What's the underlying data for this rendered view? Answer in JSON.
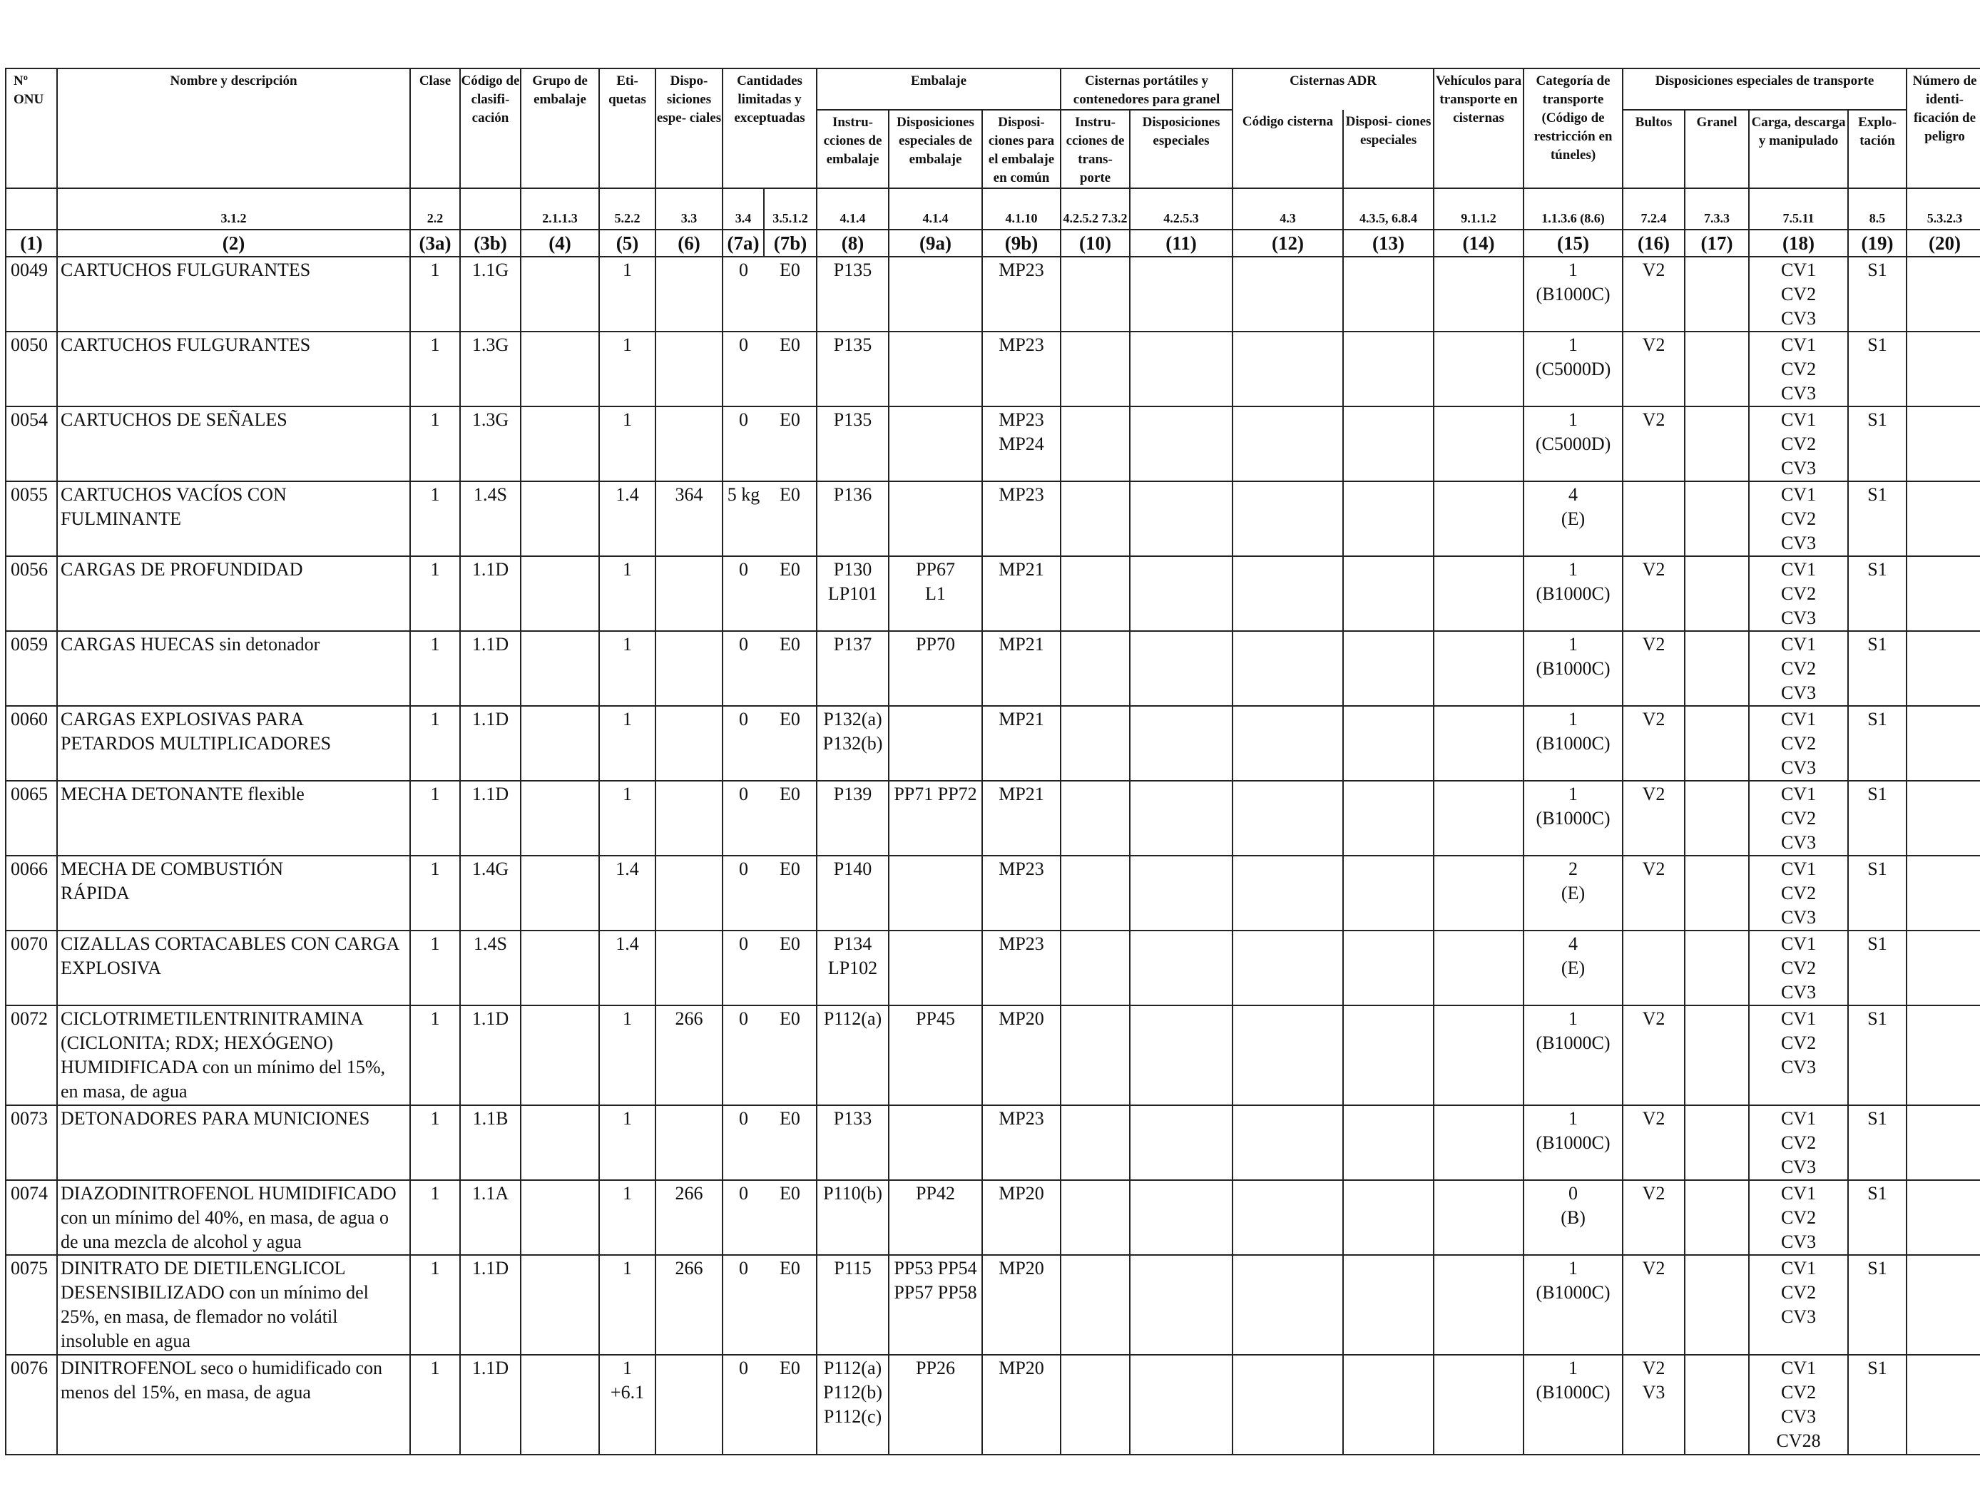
{
  "header": {
    "un_number": "Nº ONU",
    "name": "Nombre y descripción",
    "class": "Clase",
    "classification_code": "Código de clasifi- cación",
    "packing_group": "Grupo de embalaje",
    "labels": "Eti- quetas",
    "special_provisions": "Dispo- siciones espe- ciales",
    "limited_quantities": "Cantidades limitadas y exceptuadas",
    "packaging": "Embalaje",
    "packing_instructions": "Instru- cciones de embalaje",
    "special_packing_provisions": "Disposiciones especiales de embalaje",
    "mixed_packing": "Disposi- ciones para el embalaje en común",
    "portable_tanks": "Cisternas portátiles y contenedores para granel",
    "pt_instructions": "Instru- cciones de trans- porte",
    "pt_special": "Disposiciones especiales",
    "adr_tanks": "Cisternas ADR",
    "tank_code": "Código cisterna",
    "tank_special": "Disposi- ciones especiales",
    "vehicle": "Vehículos para transporte en cisternas",
    "transport_category": "Categoría de transporte (Código de restricción en túneles)",
    "special_transport": "Disposiciones especiales de transporte",
    "packages": "Bultos",
    "bulk": "Granel",
    "loading": "Carga, descarga y manipulado",
    "operation": "Explo- tación",
    "hazard_id": "Número de identi- ficación de peligro"
  },
  "refs": {
    "name": "3.1.2",
    "class": "2.2",
    "pg": "2.1.1.3",
    "labels": "5.2.2",
    "sp": "3.3",
    "lq": "3.4",
    "eq": "3.5.1.2",
    "pi": "4.1.4",
    "spp": "4.1.4",
    "mp": "4.1.10",
    "pt": "4.2.5.2 7.3.2",
    "pts": "4.2.5.3",
    "tc": "4.3",
    "ts": "4.3.5, 6.8.4",
    "veh": "9.1.1.2",
    "cat": "1.1.3.6 (8.6)",
    "pkg": "7.2.4",
    "bulk": "7.3.3",
    "load": "7.5.11",
    "op": "8.5",
    "hid": "5.3.2.3"
  },
  "col_numbers": [
    "(1)",
    "(2)",
    "(3a)",
    "(3b)",
    "(4)",
    "(5)",
    "(6)",
    "(7a)",
    "(7b)",
    "(8)",
    "(9a)",
    "(9b)",
    "(10)",
    "(11)",
    "(12)",
    "(13)",
    "(14)",
    "(15)",
    "(16)",
    "(17)",
    "(18)",
    "(19)",
    "(20)"
  ],
  "rows": [
    {
      "un": "0049",
      "name": "CARTUCHOS FULGURANTES",
      "class": "1",
      "code": "1.1G",
      "pg": "",
      "labels": "1",
      "sp": "",
      "lq": "0",
      "eq": "E0",
      "pi": "P135",
      "spp": "",
      "mp": "MP23",
      "pt": "",
      "pts": "",
      "tc": "",
      "ts": "",
      "veh": "",
      "cat": "1 (B1000C)",
      "pkg": "V2",
      "bulk": "",
      "load": "CV1 CV2 CV3",
      "op": "S1",
      "hid": ""
    },
    {
      "un": "0050",
      "name": "CARTUCHOS FULGURANTES",
      "class": "1",
      "code": "1.3G",
      "pg": "",
      "labels": "1",
      "sp": "",
      "lq": "0",
      "eq": "E0",
      "pi": "P135",
      "spp": "",
      "mp": "MP23",
      "pt": "",
      "pts": "",
      "tc": "",
      "ts": "",
      "veh": "",
      "cat": "1 (C5000D)",
      "pkg": "V2",
      "bulk": "",
      "load": "CV1 CV2 CV3",
      "op": "S1",
      "hid": ""
    },
    {
      "un": "0054",
      "name": "CARTUCHOS DE SEÑALES",
      "class": "1",
      "code": "1.3G",
      "pg": "",
      "labels": "1",
      "sp": "",
      "lq": "0",
      "eq": "E0",
      "pi": "P135",
      "spp": "",
      "mp": "MP23 MP24",
      "pt": "",
      "pts": "",
      "tc": "",
      "ts": "",
      "veh": "",
      "cat": "1 (C5000D)",
      "pkg": "V2",
      "bulk": "",
      "load": "CV1 CV2 CV3",
      "op": "S1",
      "hid": ""
    },
    {
      "un": "0055",
      "name": "CARTUCHOS VACÍOS CON FULMINANTE",
      "class": "1",
      "code": "1.4S",
      "pg": "",
      "labels": "1.4",
      "sp": "364",
      "lq": "5 kg",
      "eq": "E0",
      "pi": "P136",
      "spp": "",
      "mp": "MP23",
      "pt": "",
      "pts": "",
      "tc": "",
      "ts": "",
      "veh": "",
      "cat": "4 (E)",
      "pkg": "",
      "bulk": "",
      "load": "CV1 CV2 CV3",
      "op": "S1",
      "hid": ""
    },
    {
      "un": "0056",
      "name": "CARGAS DE PROFUNDIDAD",
      "class": "1",
      "code": "1.1D",
      "pg": "",
      "labels": "1",
      "sp": "",
      "lq": "0",
      "eq": "E0",
      "pi": "P130 LP101",
      "spp": "PP67 L1",
      "mp": "MP21",
      "pt": "",
      "pts": "",
      "tc": "",
      "ts": "",
      "veh": "",
      "cat": "1 (B1000C)",
      "pkg": "V2",
      "bulk": "",
      "load": "CV1 CV2 CV3",
      "op": "S1",
      "hid": ""
    },
    {
      "un": "0059",
      "name": "CARGAS HUECAS sin detonador",
      "class": "1",
      "code": "1.1D",
      "pg": "",
      "labels": "1",
      "sp": "",
      "lq": "0",
      "eq": "E0",
      "pi": "P137",
      "spp": "PP70",
      "mp": "MP21",
      "pt": "",
      "pts": "",
      "tc": "",
      "ts": "",
      "veh": "",
      "cat": "1 (B1000C)",
      "pkg": "V2",
      "bulk": "",
      "load": "CV1 CV2 CV3",
      "op": "S1",
      "hid": ""
    },
    {
      "un": "0060",
      "name": "CARGAS EXPLOSIVAS PARA PETARDOS MULTIPLICADORES",
      "class": "1",
      "code": "1.1D",
      "pg": "",
      "labels": "1",
      "sp": "",
      "lq": "0",
      "eq": "E0",
      "pi": "P132(a) P132(b)",
      "spp": "",
      "mp": "MP21",
      "pt": "",
      "pts": "",
      "tc": "",
      "ts": "",
      "veh": "",
      "cat": "1 (B1000C)",
      "pkg": "V2",
      "bulk": "",
      "load": "CV1 CV2 CV3",
      "op": "S1",
      "hid": ""
    },
    {
      "un": "0065",
      "name": "MECHA DETONANTE flexible",
      "class": "1",
      "code": "1.1D",
      "pg": "",
      "labels": "1",
      "sp": "",
      "lq": "0",
      "eq": "E0",
      "pi": "P139",
      "spp": "PP71 PP72",
      "mp": "MP21",
      "pt": "",
      "pts": "",
      "tc": "",
      "ts": "",
      "veh": "",
      "cat": "1 (B1000C)",
      "pkg": "V2",
      "bulk": "",
      "load": "CV1 CV2 CV3",
      "op": "S1",
      "hid": ""
    },
    {
      "un": "0066",
      "name": "MECHA DE COMBUSTIÓN RÁPIDA",
      "class": "1",
      "code": "1.4G",
      "pg": "",
      "labels": "1.4",
      "sp": "",
      "lq": "0",
      "eq": "E0",
      "pi": "P140",
      "spp": "",
      "mp": "MP23",
      "pt": "",
      "pts": "",
      "tc": "",
      "ts": "",
      "veh": "",
      "cat": "2 (E)",
      "pkg": "V2",
      "bulk": "",
      "load": "CV1 CV2 CV3",
      "op": "S1",
      "hid": ""
    },
    {
      "un": "0070",
      "name": "CIZALLAS CORTACABLES CON CARGA EXPLOSIVA",
      "class": "1",
      "code": "1.4S",
      "pg": "",
      "labels": "1.4",
      "sp": "",
      "lq": "0",
      "eq": "E0",
      "pi": "P134 LP102",
      "spp": "",
      "mp": "MP23",
      "pt": "",
      "pts": "",
      "tc": "",
      "ts": "",
      "veh": "",
      "cat": "4 (E)",
      "pkg": "",
      "bulk": "",
      "load": "CV1 CV2 CV3",
      "op": "S1",
      "hid": ""
    },
    {
      "un": "0072",
      "name": "CICLOTRIMETILENTRINITRAMINA (CICLONITA; RDX; HEXÓGENO) HUMIDIFICADA con un mínimo del 15%, en masa, de agua",
      "class": "1",
      "code": "1.1D",
      "pg": "",
      "labels": "1",
      "sp": "266",
      "lq": "0",
      "eq": "E0",
      "pi": "P112(a)",
      "spp": "PP45",
      "mp": "MP20",
      "pt": "",
      "pts": "",
      "tc": "",
      "ts": "",
      "veh": "",
      "cat": "1 (B1000C)",
      "pkg": "V2",
      "bulk": "",
      "load": "CV1 CV2 CV3",
      "op": "S1",
      "hid": ""
    },
    {
      "un": "0073",
      "name": "DETONADORES PARA MUNICIONES",
      "class": "1",
      "code": "1.1B",
      "pg": "",
      "labels": "1",
      "sp": "",
      "lq": "0",
      "eq": "E0",
      "pi": "P133",
      "spp": "",
      "mp": "MP23",
      "pt": "",
      "pts": "",
      "tc": "",
      "ts": "",
      "veh": "",
      "cat": "1 (B1000C)",
      "pkg": "V2",
      "bulk": "",
      "load": "CV1 CV2 CV3",
      "op": "S1",
      "hid": ""
    },
    {
      "un": "0074",
      "name": "DIAZODINITROFENOL HUMIDIFICADO con un mínimo del 40%, en masa, de agua o de una mezcla de alcohol y agua",
      "class": "1",
      "code": "1.1A",
      "pg": "",
      "labels": "1",
      "sp": "266",
      "lq": "0",
      "eq": "E0",
      "pi": "P110(b)",
      "spp": "PP42",
      "mp": "MP20",
      "pt": "",
      "pts": "",
      "tc": "",
      "ts": "",
      "veh": "",
      "cat": "0 (B)",
      "pkg": "V2",
      "bulk": "",
      "load": "CV1 CV2 CV3",
      "op": "S1",
      "hid": ""
    },
    {
      "un": "0075",
      "name": "DINITRATO DE DIETILENGLICOL DESENSIBILIZADO con un mínimo del 25%, en masa, de flemador no volátil insoluble en agua",
      "class": "1",
      "code": "1.1D",
      "pg": "",
      "labels": "1",
      "sp": "266",
      "lq": "0",
      "eq": "E0",
      "pi": "P115",
      "spp": "PP53 PP54 PP57 PP58",
      "mp": "MP20",
      "pt": "",
      "pts": "",
      "tc": "",
      "ts": "",
      "veh": "",
      "cat": "1 (B1000C)",
      "pkg": "V2",
      "bulk": "",
      "load": "CV1 CV2 CV3",
      "op": "S1",
      "hid": ""
    },
    {
      "un": "0076",
      "name": "DINITROFENOL seco o humidificado con menos del 15%, en masa, de agua",
      "class": "1",
      "code": "1.1D",
      "pg": "",
      "labels": "1 +6.1",
      "sp": "",
      "lq": "0",
      "eq": "E0",
      "pi": "P112(a) P112(b) P112(c)",
      "spp": "PP26",
      "mp": "MP20",
      "pt": "",
      "pts": "",
      "tc": "",
      "ts": "",
      "veh": "",
      "cat": "1 (B1000C)",
      "pkg": "V2 V3",
      "bulk": "",
      "load": "CV1 CV2 CV3 CV28",
      "op": "S1",
      "hid": ""
    }
  ],
  "row_lines": {
    "0049": {
      "cat": [
        "1",
        "(B1000C)"
      ],
      "load": [
        "CV1",
        "CV2",
        "CV3"
      ]
    },
    "0050": {
      "cat": [
        "1",
        "(C5000D)"
      ],
      "load": [
        "CV1",
        "CV2",
        "CV3"
      ]
    },
    "0054": {
      "cat": [
        "1",
        "(C5000D)"
      ],
      "load": [
        "CV1",
        "CV2",
        "CV3"
      ],
      "mp": [
        "MP23",
        "MP24"
      ]
    },
    "0055": {
      "cat": [
        "4",
        "(E)"
      ],
      "load": [
        "CV1",
        "CV2",
        "CV3"
      ],
      "name": [
        "CARTUCHOS VACÍOS CON",
        "FULMINANTE"
      ]
    },
    "0056": {
      "cat": [
        "1",
        "(B1000C)"
      ],
      "load": [
        "CV1",
        "CV2",
        "CV3"
      ],
      "pi": [
        "P130",
        "LP101"
      ],
      "spp": [
        "PP67",
        "L1"
      ]
    },
    "0059": {
      "cat": [
        "1",
        "(B1000C)"
      ],
      "load": [
        "CV1",
        "CV2",
        "CV3"
      ]
    },
    "0060": {
      "cat": [
        "1",
        "(B1000C)"
      ],
      "load": [
        "CV1",
        "CV2",
        "CV3"
      ],
      "pi": [
        "P132(a)",
        "P132(b)"
      ],
      "name": [
        "CARGAS EXPLOSIVAS PARA",
        "PETARDOS MULTIPLICADORES"
      ]
    },
    "0065": {
      "cat": [
        "1",
        "(B1000C)"
      ],
      "load": [
        "CV1",
        "CV2",
        "CV3"
      ]
    },
    "0066": {
      "cat": [
        "2",
        "(E)"
      ],
      "load": [
        "CV1",
        "CV2",
        "CV3"
      ],
      "name": [
        "MECHA DE COMBUSTIÓN",
        "RÁPIDA"
      ]
    },
    "0070": {
      "cat": [
        "4",
        "(E)"
      ],
      "load": [
        "CV1",
        "CV2",
        "CV3"
      ],
      "pi": [
        "P134",
        "LP102"
      ],
      "name": [
        "CIZALLAS CORTACABLES CON CARGA",
        "EXPLOSIVA"
      ]
    },
    "0072": {
      "cat": [
        "1",
        "(B1000C)"
      ],
      "load": [
        "CV1",
        "CV2",
        "CV3"
      ],
      "name": [
        "CICLOTRIMETILENTRINITRAMINA",
        "(CICLONITA; RDX; HEXÓGENO)",
        "HUMIDIFICADA con un mínimo del 15%,",
        "en masa, de agua"
      ]
    },
    "0073": {
      "cat": [
        "1",
        "(B1000C)"
      ],
      "load": [
        "CV1",
        "CV2",
        "CV3"
      ]
    },
    "0074": {
      "cat": [
        "0",
        "(B)"
      ],
      "load": [
        "CV1",
        "CV2",
        "CV3"
      ],
      "name": [
        "DIAZODINITROFENOL HUMIDIFICADO",
        "con un mínimo del 40%, en masa, de agua o",
        "de una mezcla de alcohol y agua"
      ]
    },
    "0075": {
      "cat": [
        "1",
        "(B1000C)"
      ],
      "load": [
        "CV1",
        "CV2",
        "CV3"
      ],
      "spp": [
        "PP53 PP54",
        "PP57 PP58"
      ],
      "name": [
        "DINITRATO DE DIETILENGLICOL",
        "DESENSIBILIZADO con un mínimo del",
        "25%, en masa, de flemador no volátil",
        "insoluble en agua"
      ]
    },
    "0076": {
      "cat": [
        "1",
        "(B1000C)"
      ],
      "load": [
        "CV1",
        "CV2",
        "CV3",
        "CV28"
      ],
      "pi": [
        "P112(a)",
        "P112(b)",
        "P112(c)"
      ],
      "pkg": [
        "V2",
        "V3"
      ],
      "labels": [
        "1",
        "+6.1"
      ],
      "name": [
        "DINITROFENOL seco o humidificado con",
        "menos del 15%, en masa, de agua"
      ]
    }
  }
}
